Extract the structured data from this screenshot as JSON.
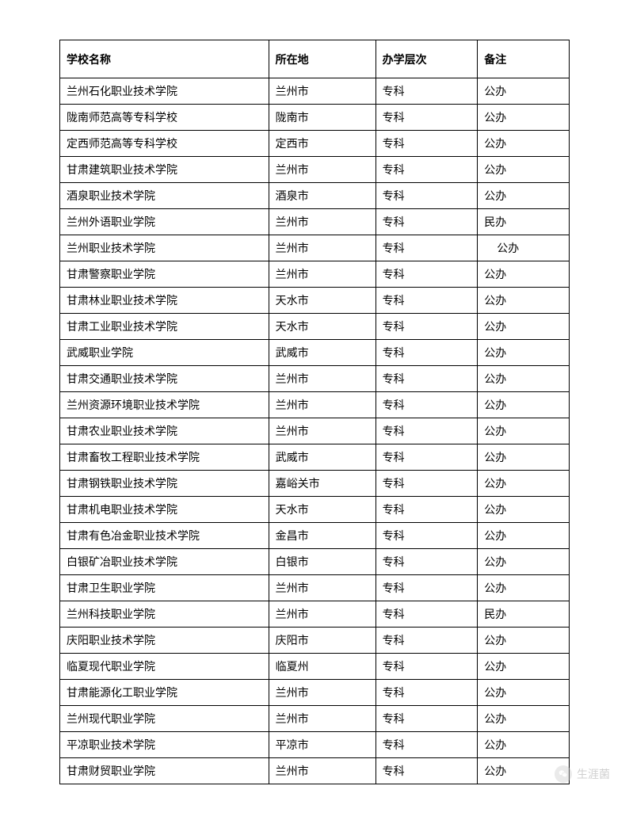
{
  "table": {
    "columns": [
      {
        "key": "name",
        "label": "学校名称",
        "width": "41%"
      },
      {
        "key": "location",
        "label": "所在地",
        "width": "21%"
      },
      {
        "key": "level",
        "label": "办学层次",
        "width": "20%"
      },
      {
        "key": "remark",
        "label": "备注",
        "width": "18%"
      }
    ],
    "rows": [
      {
        "name": "兰州石化职业技术学院",
        "location": "兰州市",
        "level": "专科",
        "remark": "公办"
      },
      {
        "name": "陇南师范高等专科学校",
        "location": "陇南市",
        "level": "专科",
        "remark": "公办"
      },
      {
        "name": "定西师范高等专科学校",
        "location": "定西市",
        "level": "专科",
        "remark": "公办"
      },
      {
        "name": "甘肃建筑职业技术学院",
        "location": "兰州市",
        "level": "专科",
        "remark": "公办"
      },
      {
        "name": "酒泉职业技术学院",
        "location": "酒泉市",
        "level": "专科",
        "remark": "公办"
      },
      {
        "name": "兰州外语职业学院",
        "location": "兰州市",
        "level": "专科",
        "remark": "民办"
      },
      {
        "name": "兰州职业技术学院",
        "location": "兰州市",
        "level": "专科",
        "remark": "公办",
        "remark_indent": true
      },
      {
        "name": "甘肃警察职业学院",
        "location": "兰州市",
        "level": "专科",
        "remark": "公办"
      },
      {
        "name": "甘肃林业职业技术学院",
        "location": "天水市",
        "level": "专科",
        "remark": "公办"
      },
      {
        "name": "甘肃工业职业技术学院",
        "location": "天水市",
        "level": "专科",
        "remark": "公办"
      },
      {
        "name": "武威职业学院",
        "location": "武威市",
        "level": "专科",
        "remark": "公办"
      },
      {
        "name": "甘肃交通职业技术学院",
        "location": "兰州市",
        "level": "专科",
        "remark": "公办"
      },
      {
        "name": "兰州资源环境职业技术学院",
        "location": "兰州市",
        "level": "专科",
        "remark": "公办"
      },
      {
        "name": "甘肃农业职业技术学院",
        "location": "兰州市",
        "level": "专科",
        "remark": "公办"
      },
      {
        "name": "甘肃畜牧工程职业技术学院",
        "location": "武威市",
        "level": "专科",
        "remark": "公办"
      },
      {
        "name": "甘肃钢铁职业技术学院",
        "location": "嘉峪关市",
        "level": "专科",
        "remark": "公办"
      },
      {
        "name": "甘肃机电职业技术学院",
        "location": "天水市",
        "level": "专科",
        "remark": "公办"
      },
      {
        "name": "甘肃有色冶金职业技术学院",
        "location": "金昌市",
        "level": "专科",
        "remark": "公办"
      },
      {
        "name": "白银矿冶职业技术学院",
        "location": "白银市",
        "level": "专科",
        "remark": "公办"
      },
      {
        "name": "甘肃卫生职业学院",
        "location": "兰州市",
        "level": "专科",
        "remark": "公办"
      },
      {
        "name": "兰州科技职业学院",
        "location": "兰州市",
        "level": "专科",
        "remark": "民办"
      },
      {
        "name": "庆阳职业技术学院",
        "location": "庆阳市",
        "level": "专科",
        "remark": "公办"
      },
      {
        "name": "临夏现代职业学院",
        "location": "临夏州",
        "level": "专科",
        "remark": "公办"
      },
      {
        "name": "甘肃能源化工职业学院",
        "location": "兰州市",
        "level": "专科",
        "remark": "公办"
      },
      {
        "name": "兰州现代职业学院",
        "location": "兰州市",
        "level": "专科",
        "remark": "公办"
      },
      {
        "name": "平凉职业技术学院",
        "location": "平凉市",
        "level": "专科",
        "remark": "公办"
      },
      {
        "name": "甘肃财贸职业学院",
        "location": "兰州市",
        "level": "专科",
        "remark": "公办"
      }
    ]
  },
  "footer": {
    "text": "生涯菌",
    "icon_bg": "#cccccc",
    "icon_fg": "#ffffff"
  },
  "colors": {
    "border": "#000000",
    "text": "#000000",
    "background": "#ffffff",
    "footer_text": "#888888"
  },
  "typography": {
    "body_fontsize": 14,
    "header_fontweight": "bold",
    "font_family": "SimSun"
  }
}
